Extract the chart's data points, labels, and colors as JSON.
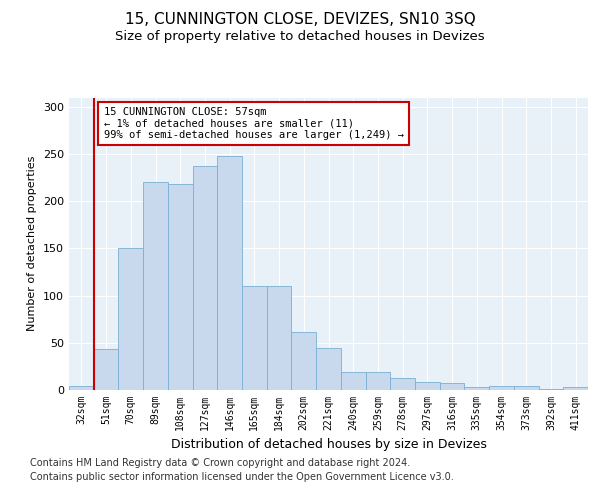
{
  "title1": "15, CUNNINGTON CLOSE, DEVIZES, SN10 3SQ",
  "title2": "Size of property relative to detached houses in Devizes",
  "xlabel": "Distribution of detached houses by size in Devizes",
  "ylabel": "Number of detached properties",
  "categories": [
    "32sqm",
    "51sqm",
    "70sqm",
    "89sqm",
    "108sqm",
    "127sqm",
    "146sqm",
    "165sqm",
    "184sqm",
    "202sqm",
    "221sqm",
    "240sqm",
    "259sqm",
    "278sqm",
    "297sqm",
    "316sqm",
    "335sqm",
    "354sqm",
    "373sqm",
    "392sqm",
    "411sqm"
  ],
  "values": [
    4,
    43,
    150,
    220,
    218,
    237,
    248,
    110,
    110,
    62,
    44,
    19,
    19,
    13,
    8,
    7,
    3,
    4,
    4,
    1,
    3
  ],
  "bar_color": "#c8d9ee",
  "bar_edge_color": "#7aafd4",
  "vline_x_index": 1,
  "vline_color": "#cc0000",
  "annotation_text": "15 CUNNINGTON CLOSE: 57sqm\n← 1% of detached houses are smaller (11)\n99% of semi-detached houses are larger (1,249) →",
  "annotation_box_color": "#ffffff",
  "annotation_box_edge": "#cc0000",
  "ylim": [
    0,
    310
  ],
  "yticks": [
    0,
    50,
    100,
    150,
    200,
    250,
    300
  ],
  "footer1": "Contains HM Land Registry data © Crown copyright and database right 2024.",
  "footer2": "Contains public sector information licensed under the Open Government Licence v3.0.",
  "bg_color": "#e8f0f8",
  "fig_bg": "#ffffff",
  "title1_fontsize": 11,
  "title2_fontsize": 9.5,
  "xlabel_fontsize": 9,
  "ylabel_fontsize": 8,
  "footer_fontsize": 7
}
